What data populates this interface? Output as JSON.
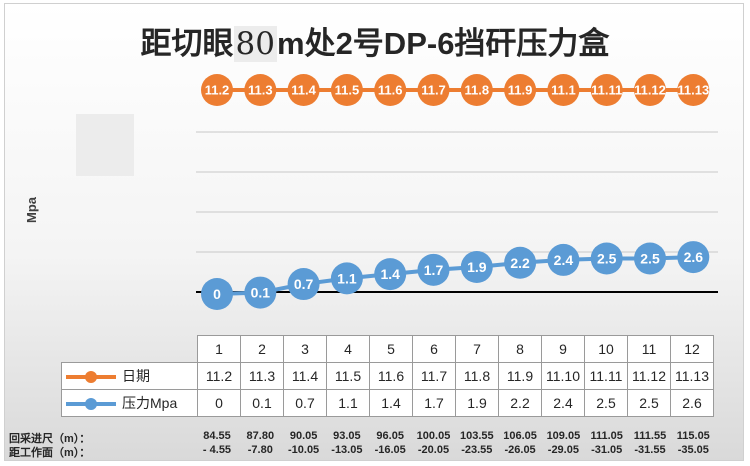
{
  "title_parts": [
    "距切眼",
    "80",
    "m处2号DP-6挡矸压力盒"
  ],
  "y_axis_label": "Mpa",
  "colors": {
    "date": "#ed7d31",
    "pressure": "#5b9bd5",
    "baseline": "#000000"
  },
  "table": {
    "row_labels": {
      "date": "日期",
      "pressure": "压力Mpa"
    }
  },
  "footer": {
    "advance_label": "回采进尺（m）：",
    "distance_label": "距工作面（m）：",
    "advance_values": [
      "84.55",
      "87.80",
      "90.05",
      "93.05",
      "96.05",
      "100.05",
      "103.55",
      "106.05",
      "109.05",
      "111.05",
      "111.55",
      "115.05"
    ],
    "distance_values": [
      "- 4.55",
      "-7.80",
      "-10.05",
      "-13.05",
      "-16.05",
      "-20.05",
      "-23.55",
      "-26.05",
      "-29.05",
      "-31.05",
      "-31.55",
      "-35.05"
    ]
  },
  "chart_data": {
    "type": "line",
    "title": "距切眼80m处2号DP-6挡矸压力盒",
    "ylabel": "Mpa",
    "categories": [
      "1",
      "2",
      "3",
      "4",
      "5",
      "6",
      "7",
      "8",
      "9",
      "10",
      "11",
      "12"
    ],
    "series": [
      {
        "name": "日期",
        "values": [
          11.2,
          11.3,
          11.4,
          11.5,
          11.6,
          11.7,
          11.8,
          11.9,
          11.1,
          11.11,
          11.12,
          11.13
        ],
        "labels": [
          "11.2",
          "11.3",
          "11.4",
          "11.5",
          "11.6",
          "11.7",
          "11.8",
          "11.9",
          "11.1",
          "11.11",
          "11.12",
          "11.13"
        ],
        "table_labels": [
          "11.2",
          "11.3",
          "11.4",
          "11.5",
          "11.6",
          "11.7",
          "11.8",
          "11.9",
          "11.10",
          "11.11",
          "11.12",
          "11.13"
        ]
      },
      {
        "name": "压力Mpa",
        "values": [
          0,
          0.1,
          0.7,
          1.1,
          1.4,
          1.7,
          1.9,
          2.2,
          2.4,
          2.5,
          2.5,
          2.6
        ],
        "labels": [
          "0",
          "0.1",
          "0.7",
          "1.1",
          "1.4",
          "1.7",
          "1.9",
          "2.2",
          "2.4",
          "2.5",
          "2.5",
          "2.6"
        ],
        "table_labels": [
          "0",
          "0.1",
          "0.7",
          "1.1",
          "1.4",
          "1.7",
          "1.9",
          "2.2",
          "2.4",
          "2.5",
          "2.5",
          "2.6"
        ]
      }
    ],
    "grid": true,
    "legend": "table-bottom",
    "data_labels": true
  }
}
